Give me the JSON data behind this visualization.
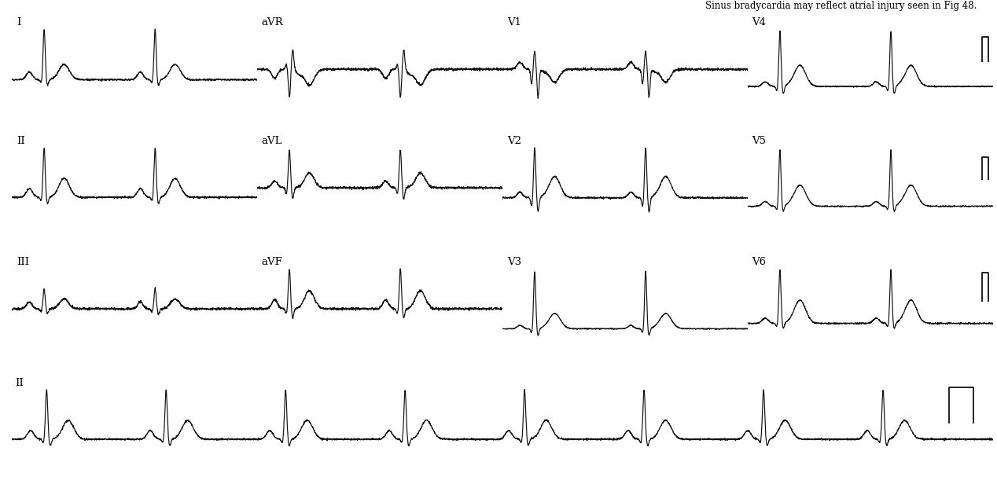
{
  "title": "Sinus bradycardia may reflect atrial injury seen in Fig 48.",
  "bg": "#ffffff",
  "fg": "#111111",
  "figsize": [
    12.68,
    6.16
  ],
  "dpi": 100,
  "rri": 1.18,
  "lead_params": {
    "I": {
      "r": 0.72,
      "p": 0.11,
      "t": 0.22,
      "q": -0.04,
      "s": -0.08,
      "st": 0.0,
      "pw": 0.032,
      "tw": 0.055
    },
    "aVR": {
      "r": -0.28,
      "p": -0.09,
      "t": -0.16,
      "q": 0.05,
      "s": 0.2,
      "st": -0.04,
      "pw": 0.03,
      "tw": 0.05
    },
    "V1": {
      "r": 0.18,
      "p": 0.07,
      "t": -0.13,
      "q": -0.15,
      "s": -0.28,
      "st": -0.02,
      "pw": 0.03,
      "tw": 0.048
    },
    "V4": {
      "r": 1.1,
      "p": 0.09,
      "t": 0.42,
      "q": -0.09,
      "s": -0.15,
      "st": 0.02,
      "pw": 0.032,
      "tw": 0.06
    },
    "II": {
      "r": 0.68,
      "p": 0.12,
      "t": 0.26,
      "q": -0.05,
      "s": -0.09,
      "st": 0.0,
      "pw": 0.032,
      "tw": 0.055
    },
    "aVL": {
      "r": 0.38,
      "p": 0.07,
      "t": 0.15,
      "q": -0.06,
      "s": -0.11,
      "st": 0.0,
      "pw": 0.03,
      "tw": 0.05
    },
    "V2": {
      "r": 0.7,
      "p": 0.08,
      "t": 0.3,
      "q": -0.12,
      "s": -0.2,
      "st": 0.01,
      "pw": 0.03,
      "tw": 0.058
    },
    "V5": {
      "r": 1.2,
      "p": 0.1,
      "t": 0.45,
      "q": -0.08,
      "s": -0.12,
      "st": 0.02,
      "pw": 0.032,
      "tw": 0.062
    },
    "III": {
      "r": 0.2,
      "p": 0.07,
      "t": 0.1,
      "q": -0.03,
      "s": -0.05,
      "st": 0.0,
      "pw": 0.028,
      "tw": 0.048
    },
    "aVF": {
      "r": 0.4,
      "p": 0.09,
      "t": 0.18,
      "q": -0.05,
      "s": -0.09,
      "st": 0.0,
      "pw": 0.03,
      "tw": 0.052
    },
    "V3": {
      "r": 1.35,
      "p": 0.08,
      "t": 0.36,
      "q": -0.1,
      "s": -0.16,
      "st": 0.01,
      "pw": 0.03,
      "tw": 0.06
    },
    "V6": {
      "r": 0.92,
      "p": 0.09,
      "t": 0.4,
      "q": -0.06,
      "s": -0.09,
      "st": 0.01,
      "pw": 0.032,
      "tw": 0.06
    }
  },
  "rows": [
    [
      "I",
      "aVR",
      "V1",
      "V4"
    ],
    [
      "II",
      "aVL",
      "V2",
      "V5"
    ],
    [
      "III",
      "aVF",
      "V3",
      "V6"
    ]
  ],
  "rhythm_lead": "II",
  "n_beats_per_section": 2,
  "n_beats_rhythm": 8,
  "noise": 0.006
}
